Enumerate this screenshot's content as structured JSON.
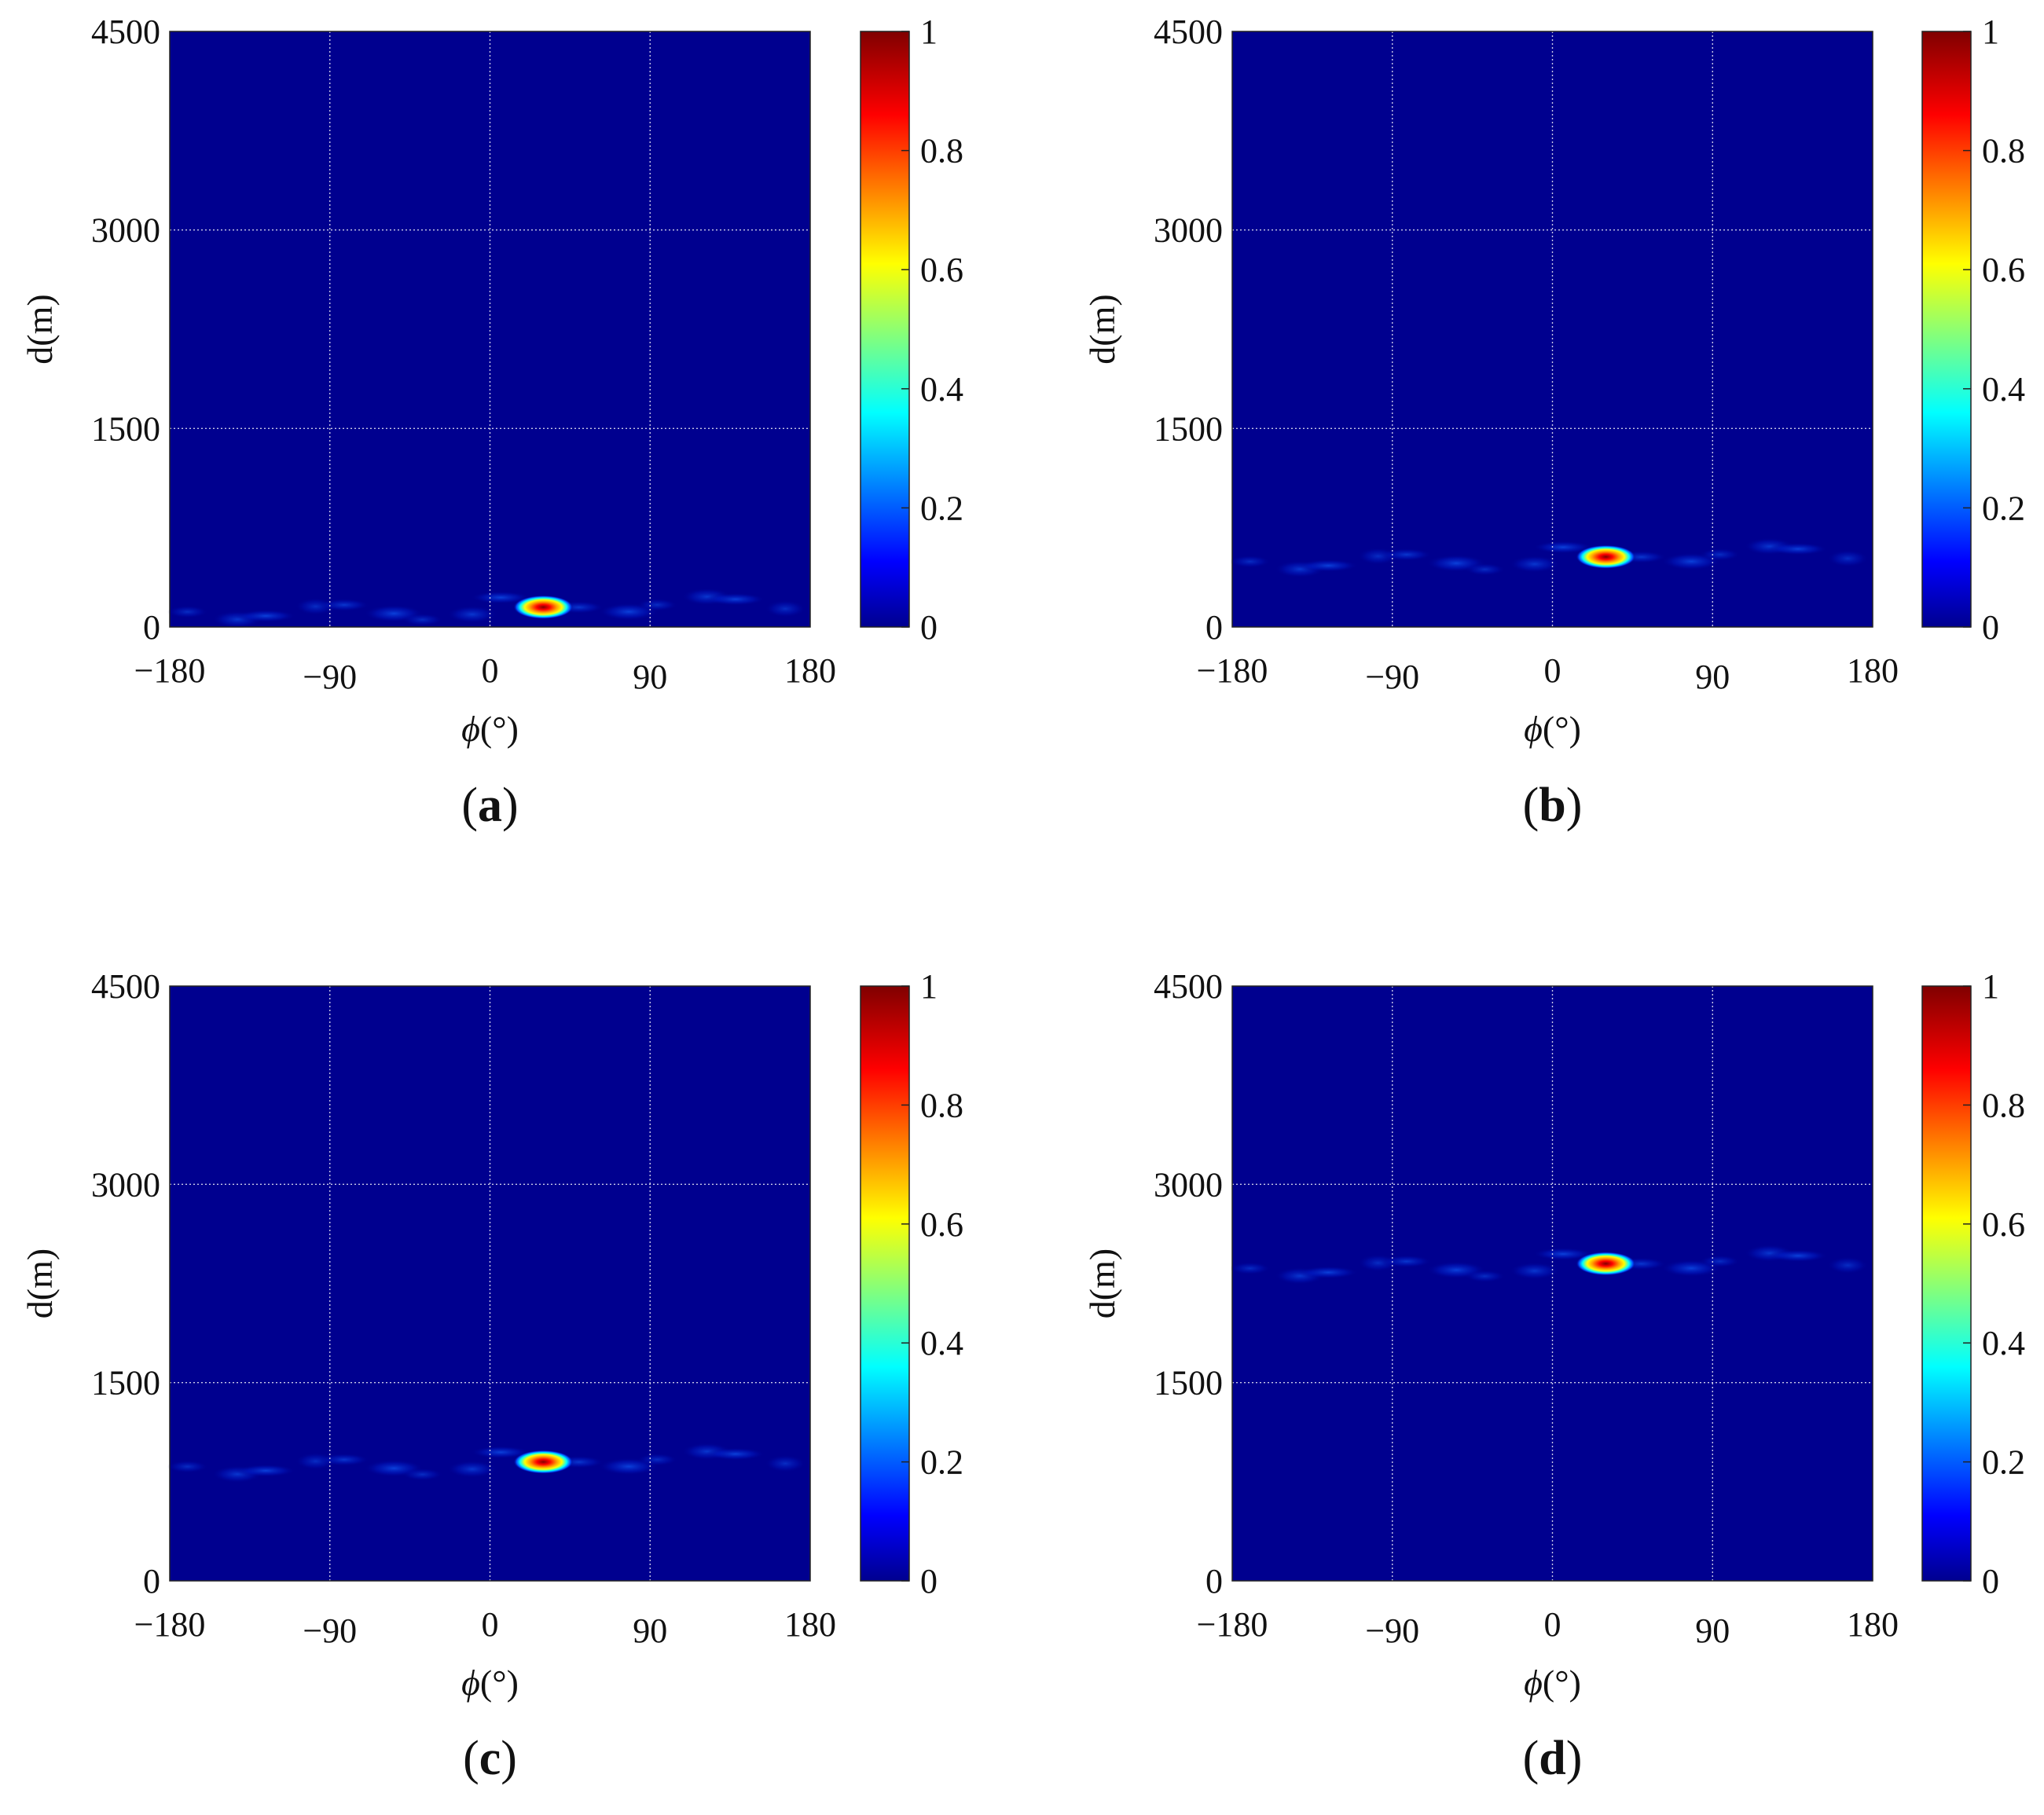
{
  "colors": {
    "background": "#ffffff",
    "colormap": "jet",
    "heatmap_floor": "#00008f",
    "grid": "#ffffff",
    "axis": "#222222"
  },
  "chart_data": [
    {
      "type": "heatmap",
      "panel_label": "a",
      "xlabel_symbol": "ϕ",
      "xlabel_unit": "(°)",
      "ylabel": "d(m)",
      "xlim": [
        -180,
        180
      ],
      "ylim": [
        0,
        4500
      ],
      "xticks": [
        "−180",
        "−90",
        "0",
        "90",
        "180"
      ],
      "xtick_values": [
        -180,
        -90,
        0,
        90,
        180
      ],
      "yticks": [
        "0",
        "1500",
        "3000",
        "4500"
      ],
      "ytick_values": [
        0,
        1500,
        3000,
        4500
      ],
      "grid": true,
      "peak": {
        "phi": 30,
        "d": 150,
        "value": 1
      },
      "sidelobe_band_d": 150,
      "colorbar": {
        "ticks": [
          "0",
          "0.2",
          "0.4",
          "0.6",
          "0.8",
          "1"
        ],
        "tick_values": [
          0,
          0.2,
          0.4,
          0.6,
          0.8,
          1
        ],
        "range": [
          0,
          1
        ]
      }
    },
    {
      "type": "heatmap",
      "panel_label": "b",
      "xlabel_symbol": "ϕ",
      "xlabel_unit": "(°)",
      "ylabel": "d(m)",
      "xlim": [
        -180,
        180
      ],
      "ylim": [
        0,
        4500
      ],
      "xticks": [
        "−180",
        "−90",
        "0",
        "90",
        "180"
      ],
      "xtick_values": [
        -180,
        -90,
        0,
        90,
        180
      ],
      "yticks": [
        "0",
        "1500",
        "3000",
        "4500"
      ],
      "ytick_values": [
        0,
        1500,
        3000,
        4500
      ],
      "grid": true,
      "peak": {
        "phi": 30,
        "d": 530,
        "value": 1
      },
      "sidelobe_band_d": 530,
      "colorbar": {
        "ticks": [
          "0",
          "0.2",
          "0.4",
          "0.6",
          "0.8",
          "1"
        ],
        "tick_values": [
          0,
          0.2,
          0.4,
          0.6,
          0.8,
          1
        ],
        "range": [
          0,
          1
        ]
      }
    },
    {
      "type": "heatmap",
      "panel_label": "c",
      "xlabel_symbol": "ϕ",
      "xlabel_unit": "(°)",
      "ylabel": "d(m)",
      "xlim": [
        -180,
        180
      ],
      "ylim": [
        0,
        4500
      ],
      "xticks": [
        "−180",
        "−90",
        "0",
        "90",
        "180"
      ],
      "xtick_values": [
        -180,
        -90,
        0,
        90,
        180
      ],
      "yticks": [
        "0",
        "1500",
        "3000",
        "4500"
      ],
      "ytick_values": [
        0,
        1500,
        3000,
        4500
      ],
      "grid": true,
      "peak": {
        "phi": 30,
        "d": 900,
        "value": 1
      },
      "sidelobe_band_d": 900,
      "colorbar": {
        "ticks": [
          "0",
          "0.2",
          "0.4",
          "0.6",
          "0.8",
          "1"
        ],
        "tick_values": [
          0,
          0.2,
          0.4,
          0.6,
          0.8,
          1
        ],
        "range": [
          0,
          1
        ]
      }
    },
    {
      "type": "heatmap",
      "panel_label": "d",
      "xlabel_symbol": "ϕ",
      "xlabel_unit": "(°)",
      "ylabel": "d(m)",
      "xlim": [
        -180,
        180
      ],
      "ylim": [
        0,
        4500
      ],
      "xticks": [
        "−180",
        "−90",
        "0",
        "90",
        "180"
      ],
      "xtick_values": [
        -180,
        -90,
        0,
        90,
        180
      ],
      "yticks": [
        "0",
        "1500",
        "3000",
        "4500"
      ],
      "ytick_values": [
        0,
        1500,
        3000,
        4500
      ],
      "grid": true,
      "peak": {
        "phi": 30,
        "d": 2400,
        "value": 1
      },
      "sidelobe_band_d": 2400,
      "colorbar": {
        "ticks": [
          "0",
          "0.2",
          "0.4",
          "0.6",
          "0.8",
          "1"
        ],
        "tick_values": [
          0,
          0.2,
          0.4,
          0.6,
          0.8,
          1
        ],
        "range": [
          0,
          1
        ]
      }
    }
  ]
}
